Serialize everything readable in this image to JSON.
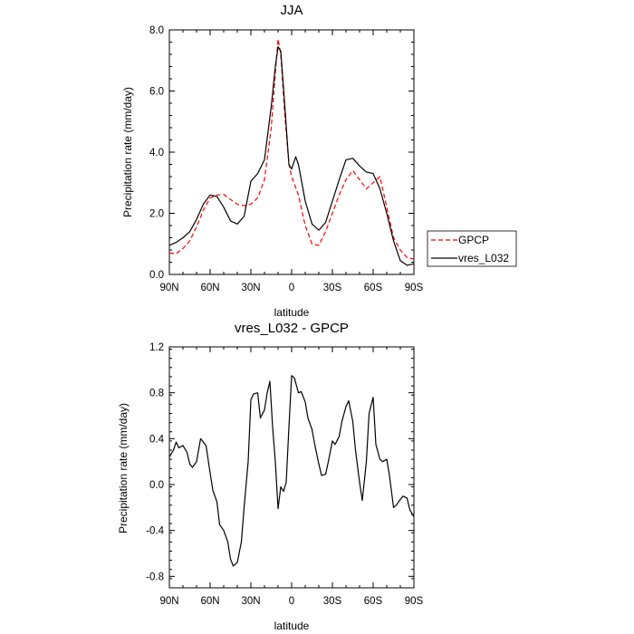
{
  "chart_data": [
    {
      "type": "line",
      "title": "JJA",
      "xlabel": "latitude",
      "ylabel": "Precipitation rate (mm/day)",
      "xlim": [
        90,
        -90
      ],
      "ylim": [
        0,
        8
      ],
      "x_ticks": [
        90,
        60,
        30,
        0,
        -30,
        -60,
        -90
      ],
      "x_tick_labels": [
        "90N",
        "60N",
        "30N",
        "0",
        "30S",
        "60S",
        "90S"
      ],
      "y_ticks": [
        0,
        2,
        4,
        6,
        8
      ],
      "y_tick_labels": [
        "0.0",
        "2.0",
        "4.0",
        "6.0",
        "8.0"
      ],
      "legend": [
        "GPCP",
        "vres_L032"
      ],
      "series": [
        {
          "name": "GPCP",
          "color": "#ff0000",
          "dash": "dashed",
          "x": [
            90,
            85,
            80,
            75,
            70,
            65,
            60,
            55,
            50,
            45,
            40,
            35,
            30,
            25,
            20,
            15,
            12,
            10,
            8,
            5,
            2,
            0,
            -5,
            -10,
            -15,
            -20,
            -25,
            -30,
            -35,
            -40,
            -45,
            -50,
            -55,
            -60,
            -65,
            -70,
            -75,
            -80,
            -85,
            -90
          ],
          "values": [
            0.7,
            0.68,
            0.85,
            1.1,
            1.55,
            2.1,
            2.5,
            2.6,
            2.62,
            2.45,
            2.3,
            2.25,
            2.3,
            2.5,
            3.1,
            4.8,
            6.6,
            7.7,
            7.2,
            5.2,
            3.6,
            3.2,
            2.6,
            1.6,
            1.0,
            0.95,
            1.4,
            2.0,
            2.6,
            3.1,
            3.4,
            3.1,
            2.8,
            3.0,
            3.2,
            2.2,
            1.2,
            0.8,
            0.55,
            0.5
          ]
        },
        {
          "name": "vres_L032",
          "color": "#000000",
          "dash": "solid",
          "x": [
            90,
            85,
            80,
            75,
            70,
            65,
            60,
            55,
            50,
            45,
            40,
            35,
            30,
            25,
            20,
            15,
            12,
            10,
            8,
            5,
            2,
            0,
            -3,
            -5,
            -10,
            -15,
            -20,
            -25,
            -30,
            -35,
            -40,
            -45,
            -50,
            -55,
            -60,
            -65,
            -70,
            -75,
            -80,
            -85,
            -90
          ],
          "values": [
            0.95,
            1.05,
            1.2,
            1.4,
            1.8,
            2.3,
            2.6,
            2.55,
            2.2,
            1.75,
            1.65,
            1.9,
            3.05,
            3.3,
            3.75,
            5.5,
            6.8,
            7.45,
            7.3,
            5.5,
            3.6,
            3.45,
            3.85,
            3.6,
            2.4,
            1.65,
            1.45,
            1.7,
            2.4,
            3.1,
            3.75,
            3.8,
            3.55,
            3.35,
            3.3,
            2.8,
            2.0,
            1.1,
            0.45,
            0.3,
            0.35
          ]
        }
      ]
    },
    {
      "type": "line",
      "title": "vres_L032 - GPCP",
      "xlabel": "latitude",
      "ylabel": "Precipitation rate (mm/day)",
      "xlim": [
        90,
        -90
      ],
      "ylim": [
        -0.9,
        1.2
      ],
      "x_ticks": [
        90,
        60,
        30,
        0,
        -30,
        -60,
        -90
      ],
      "x_tick_labels": [
        "90N",
        "60N",
        "30N",
        "0",
        "30S",
        "60S",
        "90S"
      ],
      "y_ticks": [
        -0.8,
        -0.4,
        0,
        0.4,
        0.8,
        1.2
      ],
      "y_tick_labels": [
        "-0.8",
        "-0.4",
        "0.0",
        "0.4",
        "0.8",
        "1.2"
      ],
      "series": [
        {
          "name": "vres_L032 - GPCP",
          "color": "#000000",
          "dash": "solid",
          "x": [
            90,
            87,
            85,
            83,
            80,
            77,
            75,
            73,
            70,
            67,
            65,
            63,
            60,
            58,
            55,
            53,
            50,
            47,
            45,
            43,
            40,
            37,
            35,
            32,
            30,
            28,
            25,
            23,
            20,
            18,
            16,
            14,
            12,
            10,
            8,
            6,
            4,
            2,
            0,
            -2,
            -5,
            -7,
            -10,
            -12,
            -15,
            -17,
            -20,
            -22,
            -25,
            -27,
            -30,
            -32,
            -35,
            -37,
            -40,
            -42,
            -45,
            -47,
            -50,
            -52,
            -55,
            -57,
            -60,
            -62,
            -65,
            -67,
            -70,
            -72,
            -75,
            -77,
            -80,
            -82,
            -85,
            -87,
            -90
          ],
          "values": [
            0.24,
            0.3,
            0.37,
            0.32,
            0.34,
            0.28,
            0.18,
            0.15,
            0.2,
            0.4,
            0.37,
            0.34,
            0.1,
            -0.05,
            -0.15,
            -0.35,
            -0.4,
            -0.5,
            -0.65,
            -0.71,
            -0.68,
            -0.5,
            -0.2,
            0.2,
            0.74,
            0.79,
            0.8,
            0.58,
            0.65,
            0.8,
            0.9,
            0.5,
            0.2,
            -0.21,
            -0.02,
            -0.06,
            0.02,
            0.5,
            0.95,
            0.93,
            0.8,
            0.81,
            0.72,
            0.58,
            0.48,
            0.35,
            0.18,
            0.08,
            0.09,
            0.2,
            0.38,
            0.35,
            0.42,
            0.55,
            0.68,
            0.73,
            0.55,
            0.3,
            0.02,
            -0.14,
            0.2,
            0.62,
            0.76,
            0.35,
            0.22,
            0.2,
            0.22,
            0.08,
            -0.2,
            -0.18,
            -0.13,
            -0.1,
            -0.12,
            -0.22,
            -0.28
          ]
        }
      ]
    }
  ]
}
